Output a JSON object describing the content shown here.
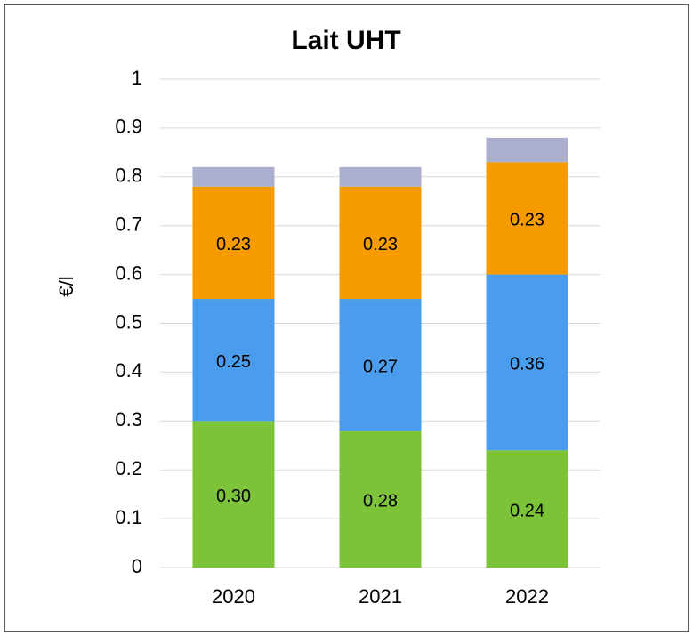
{
  "chart_data": {
    "type": "stacked_bar",
    "title": "Lait UHT",
    "y_label": "€/l",
    "categories": [
      "2020",
      "2021",
      "2022"
    ],
    "series": [
      {
        "color": "#7dc33a",
        "values": [
          0.3,
          0.28,
          0.24
        ],
        "value_labels": [
          "0.30",
          "0.28",
          "0.24"
        ]
      },
      {
        "color": "#4a9ded",
        "values": [
          0.25,
          0.27,
          0.36
        ],
        "value_labels": [
          "0.25",
          "0.27",
          "0.36"
        ]
      },
      {
        "color": "#f59b00",
        "values": [
          0.23,
          0.23,
          0.23
        ],
        "value_labels": [
          "0.23",
          "0.23",
          "0.23"
        ]
      },
      {
        "color": "#abaecd",
        "values": [
          0.04,
          0.04,
          0.05
        ]
      }
    ],
    "ylim": [
      0,
      1
    ],
    "yticks": [
      0,
      0.1,
      0.2,
      0.3,
      0.4,
      0.5,
      0.6,
      0.7,
      0.8,
      0.9,
      1
    ],
    "grid": true
  }
}
